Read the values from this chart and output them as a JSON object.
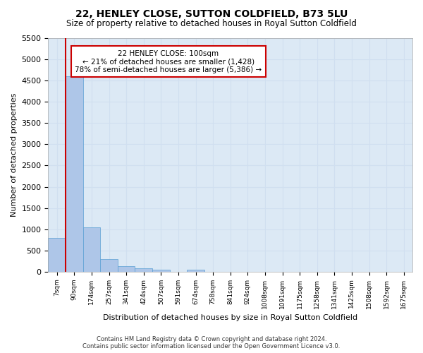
{
  "title": "22, HENLEY CLOSE, SUTTON COLDFIELD, B73 5LU",
  "subtitle": "Size of property relative to detached houses in Royal Sutton Coldfield",
  "xlabel": "Distribution of detached houses by size in Royal Sutton Coldfield",
  "ylabel": "Number of detached properties",
  "annotation_line1": "22 HENLEY CLOSE: 100sqm",
  "annotation_line2": "← 21% of detached houses are smaller (1,428)",
  "annotation_line3": "78% of semi-detached houses are larger (5,386) →",
  "footer_line1": "Contains HM Land Registry data © Crown copyright and database right 2024.",
  "footer_line2": "Contains public sector information licensed under the Open Government Licence v3.0.",
  "bar_color": "#aec6e8",
  "bar_edge_color": "#5a9fd4",
  "annotation_box_color": "#ffffff",
  "annotation_box_edge": "#cc0000",
  "red_line_color": "#cc0000",
  "grid_color": "#d0dff0",
  "background_color": "#dce9f5",
  "ylim": [
    0,
    5500
  ],
  "yticks": [
    0,
    500,
    1000,
    1500,
    2000,
    2500,
    3000,
    3500,
    4000,
    4500,
    5000,
    5500
  ],
  "bin_labels": [
    "7sqm",
    "90sqm",
    "174sqm",
    "257sqm",
    "341sqm",
    "424sqm",
    "507sqm",
    "591sqm",
    "674sqm",
    "758sqm",
    "841sqm",
    "924sqm",
    "1008sqm",
    "1091sqm",
    "1175sqm",
    "1258sqm",
    "1341sqm",
    "1425sqm",
    "1508sqm",
    "1592sqm",
    "1675sqm"
  ],
  "bar_values": [
    800,
    4600,
    1050,
    290,
    130,
    80,
    55,
    0,
    45,
    0,
    0,
    0,
    0,
    0,
    0,
    0,
    0,
    0,
    0,
    0,
    0
  ],
  "property_bin_index": 1,
  "num_bins": 21
}
